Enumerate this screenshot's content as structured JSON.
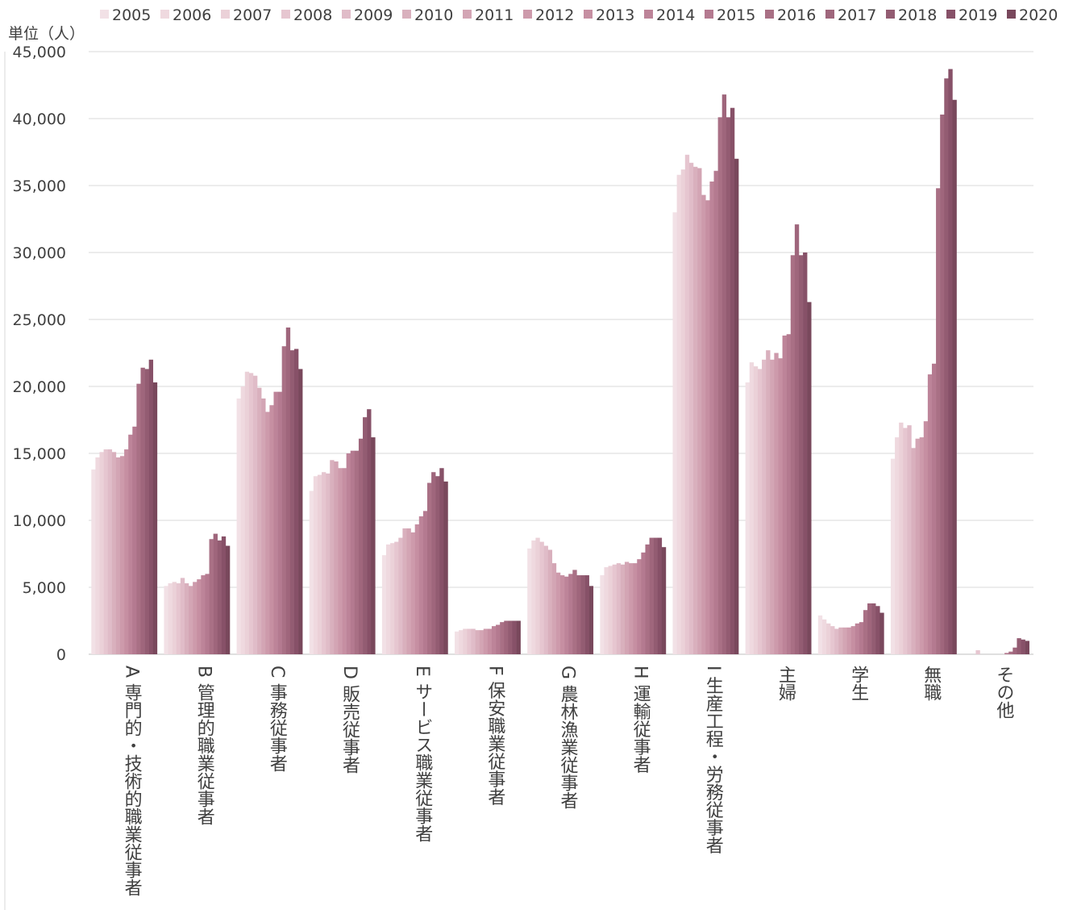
{
  "chart_data": {
    "type": "bar",
    "ylabel": "単位（人）",
    "ylim": [
      0,
      45000
    ],
    "yticks": [
      0,
      5000,
      10000,
      15000,
      20000,
      25000,
      30000,
      35000,
      40000,
      45000
    ],
    "ytick_labels": [
      "0",
      "5,000",
      "10,000",
      "15,000",
      "20,000",
      "25,000",
      "30,000",
      "35,000",
      "40,000",
      "45,000"
    ],
    "grid": true,
    "legend_position": "top",
    "categories": [
      "A 専門的・技術的職業従事者",
      "B 管理的職業従事者",
      "C 事務従事者",
      "D 販売従事者",
      "E サービス職業従事者",
      "F 保安職業従事者",
      "G 農林漁業従事者",
      "H 運輸従事者",
      "I 生産工程・労務従事者",
      "主婦",
      "学生",
      "無職",
      "その他"
    ],
    "series": [
      {
        "name": "2005",
        "color": "#f2e1e6",
        "values": [
          13800,
          5100,
          19100,
          12200,
          7400,
          1700,
          7900,
          5900,
          33000,
          20300,
          2900,
          14600,
          0
        ]
      },
      {
        "name": "2006",
        "color": "#efd9df",
        "values": [
          14700,
          5300,
          20000,
          13300,
          8200,
          1800,
          8500,
          6500,
          35800,
          21800,
          2600,
          16200,
          0
        ]
      },
      {
        "name": "2007",
        "color": "#ebd1d8",
        "values": [
          15100,
          5400,
          21100,
          13400,
          8300,
          1900,
          8700,
          6600,
          36200,
          21500,
          2300,
          17300,
          0
        ]
      },
      {
        "name": "2008",
        "color": "#e6c6d0",
        "values": [
          15300,
          5300,
          21000,
          13600,
          8400,
          1900,
          8400,
          6700,
          37300,
          21300,
          2100,
          16900,
          300
        ]
      },
      {
        "name": "2009",
        "color": "#e0bcc8",
        "values": [
          15300,
          5700,
          20800,
          13500,
          8700,
          1900,
          8100,
          6800,
          36700,
          22000,
          1900,
          17100,
          0
        ]
      },
      {
        "name": "2010",
        "color": "#d9b0bd",
        "values": [
          15100,
          5300,
          19900,
          14500,
          9400,
          1800,
          7800,
          6700,
          36400,
          22700,
          2000,
          15400,
          0
        ]
      },
      {
        "name": "2011",
        "color": "#d3a5b4",
        "values": [
          14700,
          5100,
          19100,
          14400,
          9400,
          1800,
          6800,
          6900,
          36300,
          22000,
          2000,
          16100,
          0
        ]
      },
      {
        "name": "2012",
        "color": "#cd9aab",
        "values": [
          14800,
          5400,
          18100,
          13900,
          9100,
          1900,
          6100,
          6800,
          34300,
          22500,
          2000,
          16200,
          0
        ]
      },
      {
        "name": "2013",
        "color": "#c68fa2",
        "values": [
          15300,
          5600,
          18600,
          13900,
          9700,
          1900,
          5900,
          6800,
          33900,
          22100,
          2100,
          17400,
          0
        ]
      },
      {
        "name": "2014",
        "color": "#bd8499",
        "values": [
          16400,
          5900,
          19600,
          15000,
          10300,
          2100,
          5800,
          7100,
          35300,
          23800,
          2300,
          20900,
          0
        ]
      },
      {
        "name": "2015",
        "color": "#b47a90",
        "values": [
          17000,
          6000,
          19600,
          15200,
          10700,
          2200,
          6000,
          7600,
          36100,
          23900,
          2400,
          21700,
          100
        ]
      },
      {
        "name": "2016",
        "color": "#a97085",
        "values": [
          20200,
          8600,
          23000,
          15200,
          12800,
          2400,
          6300,
          8200,
          40100,
          29800,
          3300,
          34800,
          200
        ]
      },
      {
        "name": "2017",
        "color": "#9f667c",
        "values": [
          21400,
          9000,
          24400,
          16100,
          13600,
          2500,
          5900,
          8700,
          41800,
          32100,
          3800,
          40300,
          500
        ]
      },
      {
        "name": "2018",
        "color": "#935c72",
        "values": [
          21300,
          8500,
          22700,
          17700,
          13300,
          2500,
          5900,
          8700,
          40100,
          29800,
          3800,
          43000,
          1200
        ]
      },
      {
        "name": "2019",
        "color": "#875168",
        "values": [
          22000,
          8800,
          22800,
          18300,
          13900,
          2500,
          5900,
          8700,
          40800,
          30000,
          3600,
          43700,
          1100
        ]
      },
      {
        "name": "2020",
        "color": "#79485c",
        "values": [
          20300,
          8100,
          21300,
          16200,
          12900,
          2500,
          5100,
          8000,
          37000,
          26300,
          3100,
          41400,
          1000
        ]
      }
    ]
  }
}
